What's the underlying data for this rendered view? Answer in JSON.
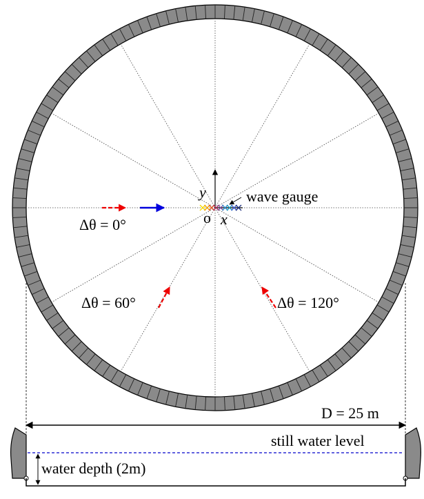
{
  "labels": {
    "wave_gauge": "wave gauge",
    "axis_y": "y",
    "axis_x": "x",
    "origin": "o",
    "angle_0": "Δθ = 0°",
    "angle_60": "Δθ = 60°",
    "angle_120": "Δθ = 120°",
    "diameter": "D = 25 m",
    "still_water": "still water level",
    "water_depth": "water depth (2m)"
  }
}
